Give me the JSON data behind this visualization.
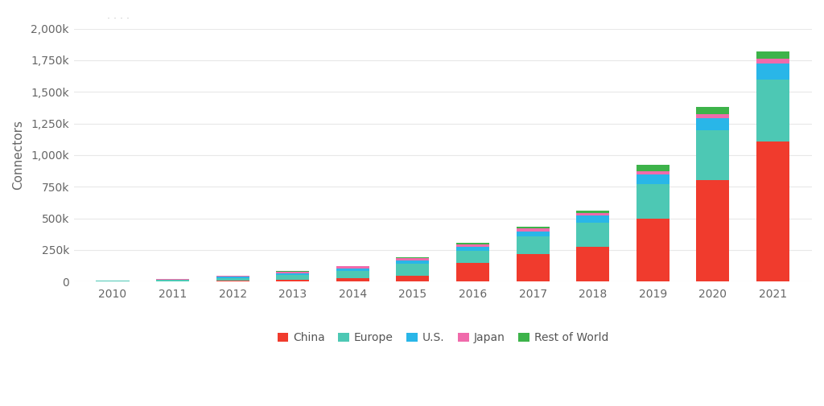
{
  "years": [
    2010,
    2011,
    2012,
    2013,
    2014,
    2015,
    2016,
    2017,
    2018,
    2019,
    2020,
    2021
  ],
  "china": [
    1000,
    3000,
    8000,
    15000,
    25000,
    45000,
    150000,
    215000,
    275000,
    500000,
    800000,
    1110000
  ],
  "europe": [
    4000,
    9000,
    22000,
    38000,
    60000,
    95000,
    95000,
    140000,
    190000,
    270000,
    400000,
    490000
  ],
  "us": [
    2000,
    5000,
    10000,
    15000,
    20000,
    28000,
    32000,
    42000,
    55000,
    75000,
    95000,
    125000
  ],
  "japan": [
    1000,
    3000,
    7000,
    11000,
    15000,
    18000,
    19000,
    22000,
    25000,
    28000,
    32000,
    36000
  ],
  "rest_of_world": [
    500,
    1000,
    2000,
    3000,
    5000,
    8000,
    10000,
    13000,
    18000,
    48000,
    55000,
    60000
  ],
  "colors": {
    "china": "#f03b2d",
    "europe": "#4dc8b4",
    "us": "#29b6e8",
    "japan": "#f06aab",
    "rest_of_world": "#3db34a"
  },
  "ylim": [
    0,
    2000000
  ],
  "yticks": [
    0,
    250000,
    500000,
    750000,
    1000000,
    1250000,
    1500000,
    1750000,
    2000000
  ],
  "ylabel": "Connectors",
  "background_color": "#ffffff",
  "grid_color": "#e8e8e8",
  "bar_width": 0.55,
  "dots_text": ". . . ."
}
